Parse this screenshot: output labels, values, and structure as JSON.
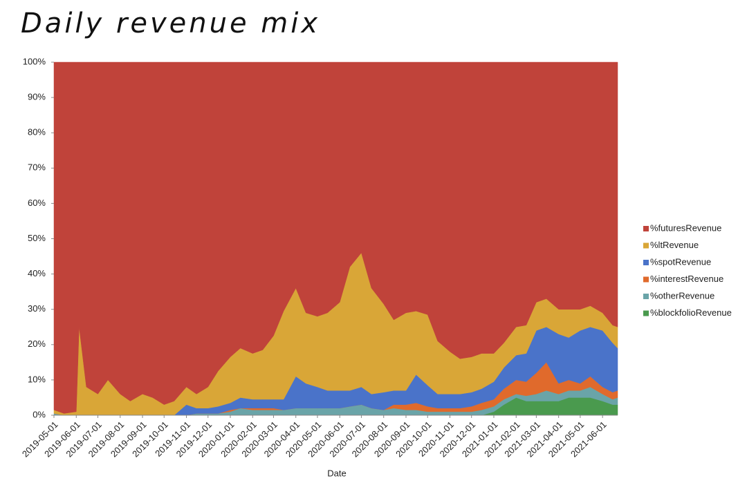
{
  "chart_data": {
    "type": "stacked-area",
    "title": "Daily revenue mix",
    "x_label": "Date",
    "x": [
      "2019-05-01",
      "2019-05-15",
      "2019-06-01",
      "2019-06-05",
      "2019-06-15",
      "2019-07-01",
      "2019-07-15",
      "2019-08-01",
      "2019-08-15",
      "2019-09-01",
      "2019-09-15",
      "2019-10-01",
      "2019-10-15",
      "2019-11-01",
      "2019-11-15",
      "2019-12-01",
      "2019-12-15",
      "2020-01-01",
      "2020-01-15",
      "2020-02-01",
      "2020-02-15",
      "2020-03-01",
      "2020-03-15",
      "2020-04-01",
      "2020-04-15",
      "2020-05-01",
      "2020-05-15",
      "2020-06-01",
      "2020-06-15",
      "2020-07-01",
      "2020-07-15",
      "2020-08-01",
      "2020-08-15",
      "2020-09-01",
      "2020-09-15",
      "2020-10-01",
      "2020-10-15",
      "2020-11-01",
      "2020-11-15",
      "2020-12-01",
      "2020-12-15",
      "2021-01-01",
      "2021-01-15",
      "2021-02-01",
      "2021-02-15",
      "2021-03-01",
      "2021-03-15",
      "2021-04-01",
      "2021-04-15",
      "2021-05-01",
      "2021-05-15",
      "2021-06-01",
      "2021-06-15",
      "2021-06-22"
    ],
    "series": [
      {
        "name": "%futuresRevenue",
        "color": "#c0433a",
        "values": [
          98.5,
          99.5,
          99,
          75,
          92,
          94,
          90,
          94,
          96,
          94,
          95,
          97,
          96,
          92,
          94,
          92,
          87.5,
          83.5,
          81,
          82.5,
          81.5,
          77.5,
          70.5,
          64,
          71,
          72,
          71,
          68,
          58,
          54,
          64,
          68.5,
          73,
          71,
          70.5,
          71.5,
          79,
          82,
          84,
          83.5,
          82.5,
          82.5,
          79.5,
          75,
          74.5,
          68,
          67,
          70,
          70,
          70,
          69,
          71,
          74.5,
          75
        ]
      },
      {
        "name": "%ltRevenue",
        "color": "#d9a637",
        "values": [
          1,
          0.5,
          1,
          25,
          8,
          6,
          10,
          6,
          4,
          6,
          5,
          3,
          4,
          5,
          4,
          6,
          10,
          13,
          14,
          13,
          14,
          18,
          25,
          25,
          20,
          20,
          22,
          25,
          35,
          38,
          30,
          25,
          20,
          22,
          18,
          20,
          15,
          12,
          10,
          10,
          10,
          8,
          7,
          8,
          8,
          8,
          8,
          7,
          8,
          6,
          6,
          5,
          5,
          6
        ]
      },
      {
        "name": "%spotRevenue",
        "color": "#4a73c9",
        "values": [
          0,
          0,
          0,
          0,
          0,
          0,
          0,
          0,
          0,
          0,
          0,
          0,
          0,
          3,
          1.5,
          1.5,
          2,
          2,
          3,
          2.5,
          2.5,
          2.5,
          3,
          9,
          7,
          6,
          5,
          5,
          4.5,
          5,
          4,
          5,
          4,
          4,
          8,
          6,
          4,
          4,
          4,
          4,
          4,
          5,
          6,
          7,
          8,
          12,
          10,
          14,
          12,
          15,
          14,
          16,
          14,
          12
        ]
      },
      {
        "name": "%interestRevenue",
        "color": "#e06a2c",
        "values": [
          0,
          0,
          0,
          0,
          0,
          0,
          0,
          0,
          0,
          0,
          0,
          0,
          0,
          0,
          0,
          0,
          0,
          0.5,
          0,
          0.5,
          0.5,
          0.5,
          0,
          0,
          0,
          0,
          0,
          0,
          0,
          0,
          0,
          0,
          1,
          1.5,
          2,
          1.5,
          1,
          1,
          1,
          1.5,
          2,
          2,
          3,
          4,
          4,
          6,
          8,
          3,
          3,
          2,
          3,
          2,
          2,
          2
        ]
      },
      {
        "name": "%otherRevenue",
        "color": "#6aa4a8",
        "values": [
          0.5,
          0,
          0,
          0,
          0,
          0,
          0,
          0,
          0,
          0,
          0,
          0,
          0,
          0,
          0.5,
          0.5,
          0.5,
          1,
          2,
          1.5,
          1.5,
          1.5,
          1.5,
          2,
          2,
          2,
          2,
          2,
          2.5,
          3,
          2,
          1.5,
          2,
          1.5,
          1.5,
          1,
          1,
          1,
          1,
          1,
          1.5,
          1.5,
          1.5,
          1,
          1.5,
          2,
          3,
          2,
          2,
          2,
          3,
          2,
          1.5,
          2
        ]
      },
      {
        "name": "%blockfolioRevenue",
        "color": "#4a9a4e",
        "values": [
          0,
          0,
          0,
          0,
          0,
          0,
          0,
          0,
          0,
          0,
          0,
          0,
          0,
          0,
          0,
          0,
          0,
          0,
          0,
          0,
          0,
          0,
          0,
          0,
          0,
          0,
          0,
          0,
          0,
          0,
          0,
          0,
          0,
          0,
          0,
          0,
          0,
          0,
          0,
          0,
          0,
          1,
          3,
          5,
          4,
          4,
          4,
          4,
          5,
          5,
          5,
          4,
          3,
          3
        ]
      }
    ],
    "xlim": [
      "2019-05-01",
      "2021-06-22"
    ],
    "xticks": [
      "2019-05-01",
      "2019-06-01",
      "2019-07-01",
      "2019-08-01",
      "2019-09-01",
      "2019-10-01",
      "2019-11-01",
      "2019-12-01",
      "2020-01-01",
      "2020-02-01",
      "2020-03-01",
      "2020-04-01",
      "2020-05-01",
      "2020-06-01",
      "2020-07-01",
      "2020-08-01",
      "2020-09-01",
      "2020-10-01",
      "2020-11-01",
      "2020-12-01",
      "2021-01-01",
      "2021-02-01",
      "2021-03-01",
      "2021-04-01",
      "2021-05-01",
      "2021-06-01"
    ],
    "ylim": [
      0,
      100
    ],
    "yticks": [
      {
        "value": 0,
        "label": "0%"
      },
      {
        "value": 10,
        "label": "10%"
      },
      {
        "value": 20,
        "label": "20%"
      },
      {
        "value": 30,
        "label": "30%"
      },
      {
        "value": 40,
        "label": "40%"
      },
      {
        "value": 50,
        "label": "50%"
      },
      {
        "value": 60,
        "label": "60%"
      },
      {
        "value": 70,
        "label": "70%"
      },
      {
        "value": 80,
        "label": "80%"
      },
      {
        "value": 90,
        "label": "90%"
      },
      {
        "value": 100,
        "label": "100%"
      }
    ],
    "legend": "right"
  }
}
